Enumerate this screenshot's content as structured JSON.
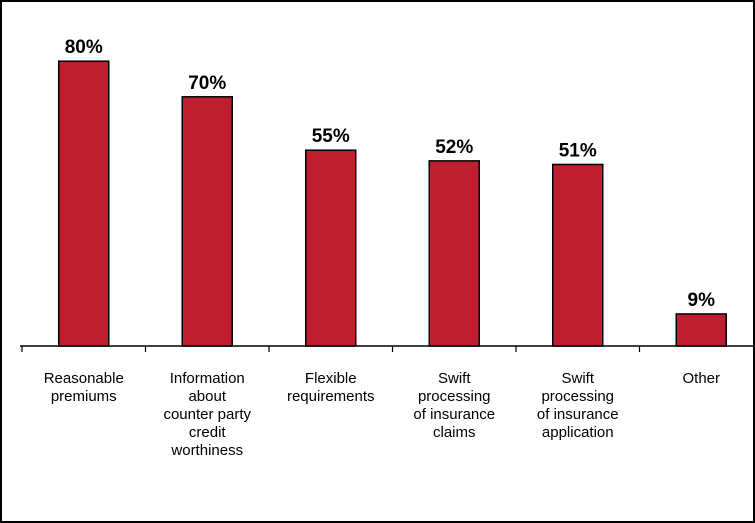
{
  "chart_data": {
    "type": "bar",
    "categories": [
      [
        "Reasonable",
        "premiums"
      ],
      [
        "Information",
        "about",
        "counter party",
        "credit",
        "worthiness"
      ],
      [
        "Flexible",
        "requirements"
      ],
      [
        "Swift",
        "processing",
        "of insurance",
        "claims"
      ],
      [
        "Swift",
        "processing",
        "of insurance",
        "application"
      ],
      [
        "Other"
      ]
    ],
    "values": [
      80,
      70,
      55,
      52,
      51,
      9
    ],
    "value_labels": [
      "80%",
      "70%",
      "55%",
      "52%",
      "51%",
      "9%"
    ],
    "unit": "%",
    "ylim": [
      0,
      100
    ],
    "grid": false,
    "legend": "none",
    "colors": {
      "bar_fill": "#BE1E2D",
      "bar_stroke": "#000000",
      "axis": "#000000",
      "frame": "#000000"
    }
  }
}
